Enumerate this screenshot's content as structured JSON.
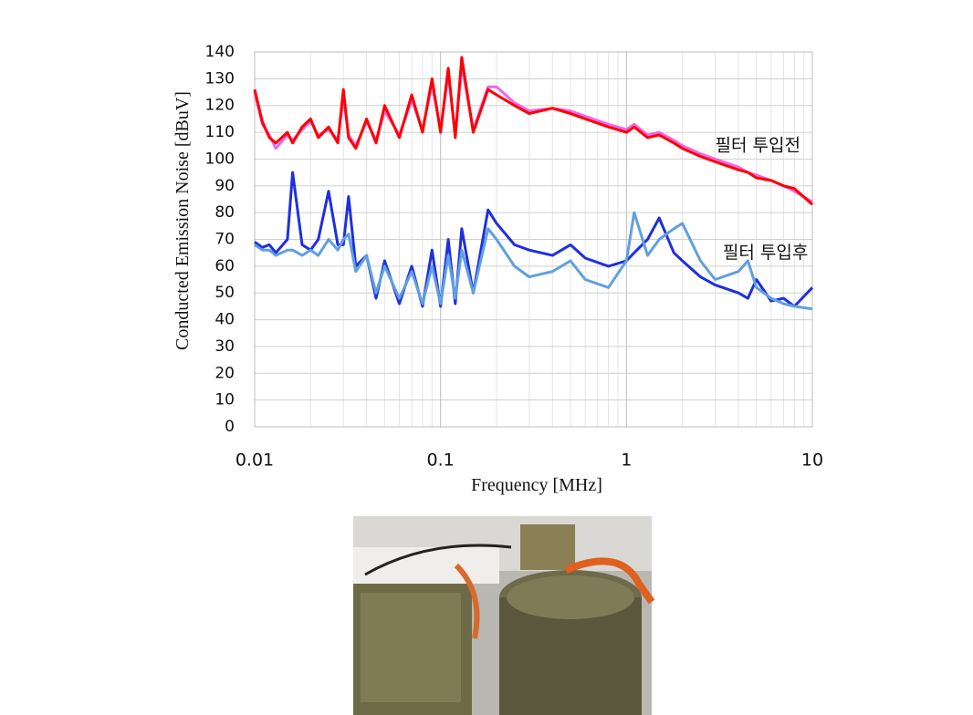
{
  "chart_data": {
    "type": "line",
    "xlabel": "Frequency [MHz]",
    "ylabel": "Conducted Emission Noise [dBuV]",
    "xscale": "log",
    "grid": true,
    "minor_grid": true,
    "xlim": [
      0.01,
      10
    ],
    "xticks": [
      0.01,
      0.1,
      1,
      10
    ],
    "ylim": [
      0,
      140
    ],
    "yticks": [
      0,
      10,
      20,
      30,
      40,
      50,
      60,
      70,
      80,
      90,
      100,
      110,
      120,
      130,
      140
    ],
    "x": [
      0.01,
      0.011,
      0.012,
      0.013,
      0.015,
      0.016,
      0.018,
      0.02,
      0.022,
      0.025,
      0.028,
      0.03,
      0.032,
      0.035,
      0.04,
      0.045,
      0.05,
      0.06,
      0.07,
      0.08,
      0.09,
      0.1,
      0.11,
      0.12,
      0.13,
      0.15,
      0.18,
      0.2,
      0.25,
      0.3,
      0.4,
      0.5,
      0.6,
      0.8,
      1,
      1.1,
      1.3,
      1.5,
      1.8,
      2,
      2.5,
      3,
      4,
      4.5,
      5,
      6,
      7,
      8,
      10
    ],
    "series": [
      {
        "color": "#ee66ee",
        "values": [
          125,
          113,
          109,
          104,
          109,
          107,
          111,
          114,
          109,
          111,
          107,
          123,
          109,
          105,
          114,
          107,
          118,
          109,
          122,
          111,
          128,
          111,
          132,
          109,
          135,
          111,
          127,
          127,
          121,
          118,
          119,
          118,
          116,
          113,
          111,
          113,
          109,
          110,
          107,
          105,
          102,
          100,
          97,
          95,
          94,
          92,
          90,
          88,
          84
        ]
      },
      {
        "color": "#ff0000",
        "values": [
          126,
          114,
          108,
          106,
          110,
          106,
          112,
          115,
          108,
          112,
          106,
          126,
          108,
          104,
          115,
          106,
          120,
          108,
          124,
          110,
          130,
          110,
          134,
          108,
          138,
          110,
          126,
          124,
          120,
          117,
          119,
          117,
          115,
          112,
          110,
          112,
          108,
          109,
          106,
          104,
          101,
          99,
          96,
          95,
          93,
          92,
          90,
          89,
          83
        ]
      },
      {
        "color": "#1f2fe0",
        "values": [
          69,
          67,
          68,
          65,
          70,
          95,
          68,
          66,
          70,
          88,
          68,
          68,
          86,
          60,
          64,
          48,
          62,
          46,
          60,
          45,
          66,
          45,
          70,
          46,
          74,
          50,
          81,
          76,
          68,
          66,
          64,
          68,
          63,
          60,
          62,
          65,
          70,
          78,
          65,
          62,
          56,
          53,
          50,
          48,
          55,
          47,
          48,
          45,
          52
        ]
      },
      {
        "color": "#5fa0e0",
        "values": [
          68,
          66,
          66,
          64,
          66,
          66,
          64,
          66,
          64,
          70,
          66,
          70,
          72,
          58,
          64,
          50,
          60,
          48,
          58,
          46,
          60,
          46,
          64,
          48,
          66,
          50,
          74,
          70,
          60,
          56,
          58,
          62,
          55,
          52,
          62,
          80,
          64,
          70,
          74,
          76,
          62,
          55,
          58,
          62,
          52,
          48,
          46,
          45,
          44
        ]
      }
    ],
    "annotations": [
      {
        "text": "필터 투입전",
        "x": 3,
        "y": 103
      },
      {
        "text": "필터 투입후",
        "x": 3.3,
        "y": 63
      }
    ]
  }
}
